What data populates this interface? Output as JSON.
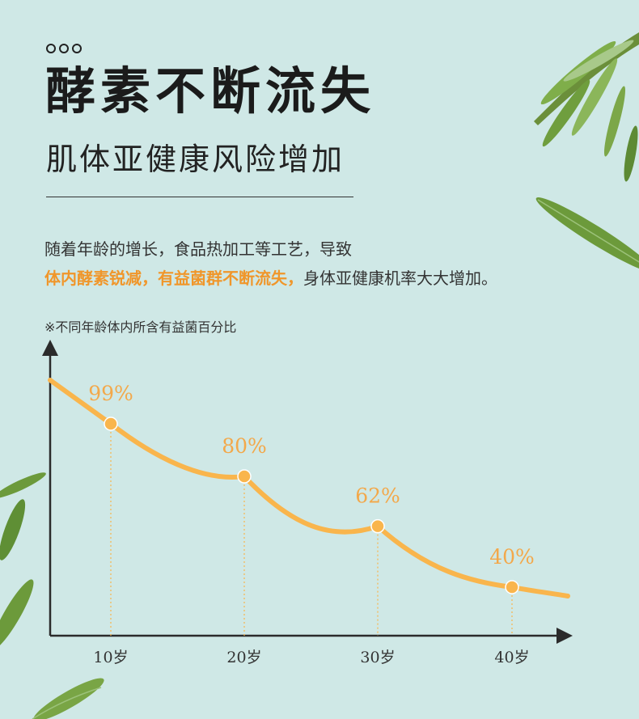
{
  "header": {
    "title": "酵素不断流失",
    "subtitle": "肌体亚健康风险增加"
  },
  "description": {
    "line1": "随着年龄的增长，食品热加工等工艺，导致",
    "highlight": "体内酵素锐减，有益菌群不断流失，",
    "line2_rest": "身体亚健康机率大大增加。"
  },
  "note": "※不同年龄体内所含有益菌百分比",
  "colors": {
    "background": "#cfe8e6",
    "accent": "#f0962a",
    "curve": "#f9b54c",
    "label": "#f3a84a",
    "axis": "#2b2b2b"
  },
  "chart_data": {
    "type": "line",
    "title": "",
    "xlabel": "",
    "ylabel": "",
    "categories": [
      "10岁",
      "20岁",
      "30岁",
      "40岁"
    ],
    "series": [
      {
        "values": [
          99,
          80,
          62,
          40
        ],
        "labels": [
          "99%",
          "80%",
          "62%",
          "40%"
        ]
      }
    ],
    "ylim": [
      0,
      100
    ],
    "grid": false,
    "legend": "none"
  },
  "decor": {
    "icons": [
      "rosemary-leaf-icon"
    ]
  }
}
